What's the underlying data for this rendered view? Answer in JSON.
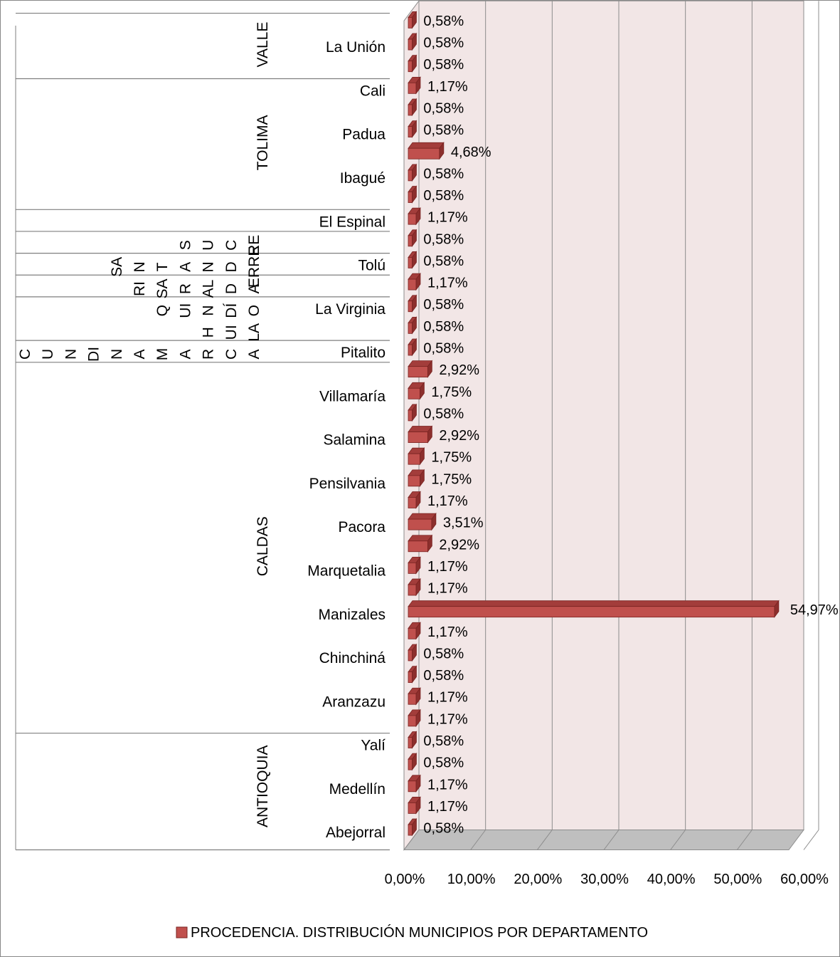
{
  "chart_data": {
    "type": "bar",
    "orientation": "horizontal",
    "style": "3d-clustered-bar",
    "title": "",
    "xlabel": "",
    "ylabel": "",
    "xlim": [
      0,
      60
    ],
    "x_ticks": [
      "0,00%",
      "10,00%",
      "20,00%",
      "30,00%",
      "40,00%",
      "50,00%",
      "60,00%"
    ],
    "grid": true,
    "legend_position": "bottom",
    "colors": {
      "bar": "#c0504d",
      "bar_dark": "#8c2f2d",
      "bar_top": "#a33d3b",
      "wall": "#f2e6e6",
      "floor": "#bfbfbf",
      "grid": "#8c8c8c",
      "text": "#000000"
    },
    "series": [
      {
        "name": "PROCEDENCIA. DISTRIBUCIÓN MUNICIPIOS POR DEPARTAMENTO",
        "order": "bottom-to-top",
        "values": [
          0.58,
          1.17,
          1.17,
          0.58,
          0.58,
          1.17,
          1.17,
          0.58,
          0.58,
          1.17,
          54.97,
          1.17,
          1.17,
          2.92,
          3.51,
          1.17,
          1.75,
          1.75,
          2.92,
          0.58,
          1.75,
          2.92,
          0.58,
          0.58,
          0.58,
          1.17,
          0.58,
          0.58,
          1.17,
          0.58,
          0.58,
          4.68,
          0.58,
          0.58,
          1.17,
          0.58,
          0.58,
          0.58
        ],
        "labels": [
          "0,58%",
          "1,17%",
          "1,17%",
          "0,58%",
          "0,58%",
          "1,17%",
          "1,17%",
          "0,58%",
          "0,58%",
          "1,17%",
          "54,97%",
          "1,17%",
          "1,17%",
          "2,92%",
          "3,51%",
          "1,17%",
          "1,75%",
          "1,75%",
          "2,92%",
          "0,58%",
          "1,75%",
          "2,92%",
          "0,58%",
          "0,58%",
          "0,58%",
          "1,17%",
          "0,58%",
          "0,58%",
          "1,17%",
          "0,58%",
          "0,58%",
          "4,68%",
          "0,58%",
          "0,58%",
          "1,17%",
          "0,58%",
          "0,58%",
          "0,58%"
        ]
      }
    ],
    "municipality_labels": [
      {
        "index": 0,
        "text": "Abejorral"
      },
      {
        "index": 2,
        "text": "Medellín"
      },
      {
        "index": 4,
        "text": "Yalí"
      },
      {
        "index": 6,
        "text": "Aranzazu"
      },
      {
        "index": 8,
        "text": "Chinchiná"
      },
      {
        "index": 10,
        "text": "Manizales"
      },
      {
        "index": 12,
        "text": "Marquetalia"
      },
      {
        "index": 14,
        "text": "Pacora"
      },
      {
        "index": 16,
        "text": "Pensilvania"
      },
      {
        "index": 18,
        "text": "Salamina"
      },
      {
        "index": 20,
        "text": "Villamaría"
      },
      {
        "index": 22,
        "text": "Pitalito"
      },
      {
        "index": 24,
        "text": "La Virginia"
      },
      {
        "index": 26,
        "text": "Tolú"
      },
      {
        "index": 28,
        "text": "El Espinal"
      },
      {
        "index": 30,
        "text": "Ibagué"
      },
      {
        "index": 32,
        "text": "Padua"
      },
      {
        "index": 34,
        "text": "Cali"
      },
      {
        "index": 36,
        "text": "La Unión"
      }
    ],
    "departments": [
      {
        "name": "ANTIOQUIA",
        "start": 0,
        "end": 4,
        "orientation": "vertical"
      },
      {
        "name": "CALDAS",
        "start": 5,
        "end": 21,
        "orientation": "vertical"
      },
      {
        "name": "CUNDINAMARCA",
        "start": 22,
        "end": 22,
        "orientation": "stacked-letters"
      },
      {
        "name": "HUILA",
        "start": 23,
        "end": 24,
        "orientation": "stacked-letters"
      },
      {
        "name": "QUINDÍO",
        "start": 25,
        "end": 25,
        "orientation": "stacked-letters"
      },
      {
        "name": "RISARALDA",
        "start": 26,
        "end": 26,
        "orientation": "stacked-letters"
      },
      {
        "name": "SANTANDER",
        "start": 27,
        "end": 27,
        "orientation": "stacked-letters"
      },
      {
        "name": "SUCRE",
        "start": 28,
        "end": 28,
        "orientation": "stacked-letters"
      },
      {
        "name": "TOLIMA",
        "start": 29,
        "end": 34,
        "orientation": "vertical"
      },
      {
        "name": "VALLE",
        "start": 35,
        "end": 37,
        "orientation": "vertical"
      }
    ],
    "fragmented_labels": [
      {
        "text": "C",
        "row": 22,
        "col": 0
      },
      {
        "text": "U",
        "row": 22,
        "col": 1
      },
      {
        "text": "N",
        "row": 22,
        "col": 2
      },
      {
        "text": "DI",
        "row": 22,
        "col": 3
      },
      {
        "text": "N",
        "row": 22,
        "col": 4
      },
      {
        "text": "A",
        "row": 22,
        "col": 5
      },
      {
        "text": "M",
        "row": 22,
        "col": 6
      },
      {
        "text": "A",
        "row": 22,
        "col": 7
      },
      {
        "text": "R",
        "row": 22,
        "col": 8
      },
      {
        "text": "C",
        "row": 22,
        "col": 9
      },
      {
        "text": "A",
        "row": 22,
        "col": 10
      },
      {
        "text": "H",
        "row": 23,
        "col": 8
      },
      {
        "text": "UI",
        "row": 23,
        "col": 9
      },
      {
        "text": "LA",
        "row": 23,
        "col": 10
      },
      {
        "text": "Q",
        "row": 24,
        "col": 6
      },
      {
        "text": "UI",
        "row": 24,
        "col": 7
      },
      {
        "text": "N",
        "row": 24,
        "col": 8
      },
      {
        "text": "DÍ",
        "row": 24,
        "col": 9
      },
      {
        "text": "O",
        "row": 24,
        "col": 10
      },
      {
        "text": "RI",
        "row": 25,
        "col": 5
      },
      {
        "text": "SA",
        "row": 25,
        "col": 6
      },
      {
        "text": "R",
        "row": 25,
        "col": 7
      },
      {
        "text": "AL",
        "row": 25,
        "col": 8
      },
      {
        "text": "D",
        "row": 25,
        "col": 9
      },
      {
        "text": "A",
        "row": 25,
        "col": 10
      },
      {
        "text": "SA",
        "row": 26,
        "col": 4
      },
      {
        "text": "N",
        "row": 26,
        "col": 5
      },
      {
        "text": "T",
        "row": 26,
        "col": 6
      },
      {
        "text": "A",
        "row": 26,
        "col": 7
      },
      {
        "text": "N",
        "row": 26,
        "col": 8
      },
      {
        "text": "D",
        "row": 26,
        "col": 9
      },
      {
        "text": "ERRE",
        "row": 26,
        "col": 10
      },
      {
        "text": "S",
        "row": 27,
        "col": 7
      },
      {
        "text": "U",
        "row": 27,
        "col": 8
      },
      {
        "text": "C",
        "row": 27,
        "col": 9
      },
      {
        "text": "RE",
        "row": 27,
        "col": 10
      }
    ]
  }
}
